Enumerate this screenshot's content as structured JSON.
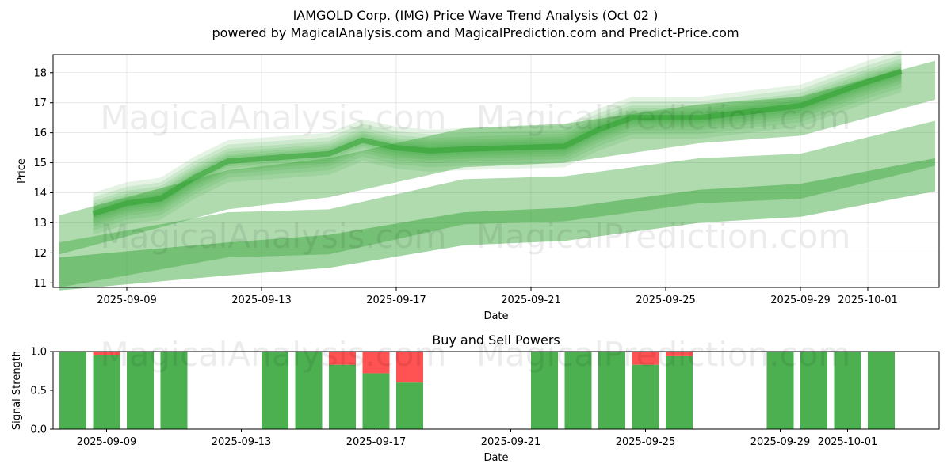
{
  "title_line1": "IAMGOLD Corp. (IMG) Price Wave Trend Analysis (Oct 02 )",
  "title_line2": "powered by MagicalAnalysis.com and MagicalPrediction.com and Predict-Price.com",
  "watermarks": [
    "MagicalAnalysis.com",
    "MagicalPrediction.com"
  ],
  "colors": {
    "green": "#2ca02c",
    "buy": "#4caf50",
    "sell": "#ff5252"
  },
  "chart_data": [
    {
      "type": "area",
      "name": "price-wave-trend",
      "xlabel": "Date",
      "ylabel": "Price",
      "xlim": [
        "2025-09-07",
        "2025-10-04"
      ],
      "ylim": [
        10.85,
        18.6
      ],
      "xticks": [
        "2025-09-09",
        "2025-09-13",
        "2025-09-17",
        "2025-09-21",
        "2025-09-25",
        "2025-09-29",
        "2025-10-01"
      ],
      "yticks": [
        11,
        12,
        13,
        14,
        15,
        16,
        17,
        18
      ],
      "grid": true,
      "x": [
        "2025-09-08",
        "2025-09-09",
        "2025-09-10",
        "2025-09-11",
        "2025-09-12",
        "2025-09-15",
        "2025-09-16",
        "2025-09-17",
        "2025-09-18",
        "2025-09-19",
        "2025-09-22",
        "2025-09-23",
        "2025-09-24",
        "2025-09-25",
        "2025-09-26",
        "2025-09-29",
        "2025-09-30",
        "2025-10-01",
        "2025-10-02"
      ],
      "price_line": [
        13.3,
        13.65,
        13.8,
        14.5,
        15.05,
        15.3,
        15.75,
        15.5,
        15.4,
        15.45,
        15.55,
        16.1,
        16.5,
        16.5,
        16.5,
        16.9,
        17.3,
        17.7,
        18.05
      ],
      "trend_bands": [
        {
          "name": "upper-wave",
          "x": [
            "2025-09-07",
            "2025-09-12",
            "2025-09-15",
            "2025-09-19",
            "2025-09-22",
            "2025-09-26",
            "2025-09-29",
            "2025-10-03"
          ],
          "center": [
            12.6,
            14.1,
            14.5,
            15.5,
            15.65,
            16.3,
            16.55,
            17.75
          ],
          "half_width": 0.65
        },
        {
          "name": "middle-wave",
          "x": [
            "2025-09-07",
            "2025-09-12",
            "2025-09-15",
            "2025-09-19",
            "2025-09-22",
            "2025-09-26",
            "2025-09-29",
            "2025-10-03"
          ],
          "center": [
            11.6,
            12.6,
            12.7,
            13.7,
            13.8,
            14.4,
            14.55,
            15.65
          ],
          "half_width": 0.75
        },
        {
          "name": "lower-wave",
          "x": [
            "2025-09-07",
            "2025-09-12",
            "2025-09-15",
            "2025-09-19",
            "2025-09-22",
            "2025-09-26",
            "2025-09-29",
            "2025-10-03"
          ],
          "center": [
            11.3,
            11.8,
            12.05,
            12.8,
            12.95,
            13.55,
            13.75,
            14.6
          ],
          "half_width": 0.55
        }
      ]
    },
    {
      "type": "bar",
      "name": "buy-sell-powers",
      "title": "Buy and Sell Powers",
      "xlabel": "Date",
      "ylabel": "Signal Strength",
      "ylim": [
        0,
        1
      ],
      "yticks": [
        "0.0",
        "0.5",
        "1.0"
      ],
      "xticks": [
        "2025-09-09",
        "2025-09-13",
        "2025-09-17",
        "2025-09-21",
        "2025-09-25",
        "2025-09-29",
        "2025-10-01"
      ],
      "categories": [
        "2025-09-08",
        "2025-09-09",
        "2025-09-10",
        "2025-09-11",
        "2025-09-14",
        "2025-09-15",
        "2025-09-16",
        "2025-09-17",
        "2025-09-18",
        "2025-09-22",
        "2025-09-23",
        "2025-09-24",
        "2025-09-25",
        "2025-09-26",
        "2025-09-29",
        "2025-09-30",
        "2025-10-01",
        "2025-10-02"
      ],
      "series": [
        {
          "name": "Buy",
          "values": [
            1.0,
            0.95,
            1.0,
            1.0,
            1.0,
            1.0,
            0.83,
            0.72,
            0.6,
            1.0,
            1.0,
            1.0,
            0.83,
            0.94,
            1.0,
            1.0,
            1.0,
            1.0
          ]
        },
        {
          "name": "Sell",
          "values": [
            0.0,
            0.05,
            0.0,
            0.0,
            0.0,
            0.0,
            0.17,
            0.28,
            0.4,
            0.0,
            0.0,
            0.0,
            0.17,
            0.06,
            0.0,
            0.0,
            0.0,
            0.0
          ]
        }
      ]
    }
  ]
}
